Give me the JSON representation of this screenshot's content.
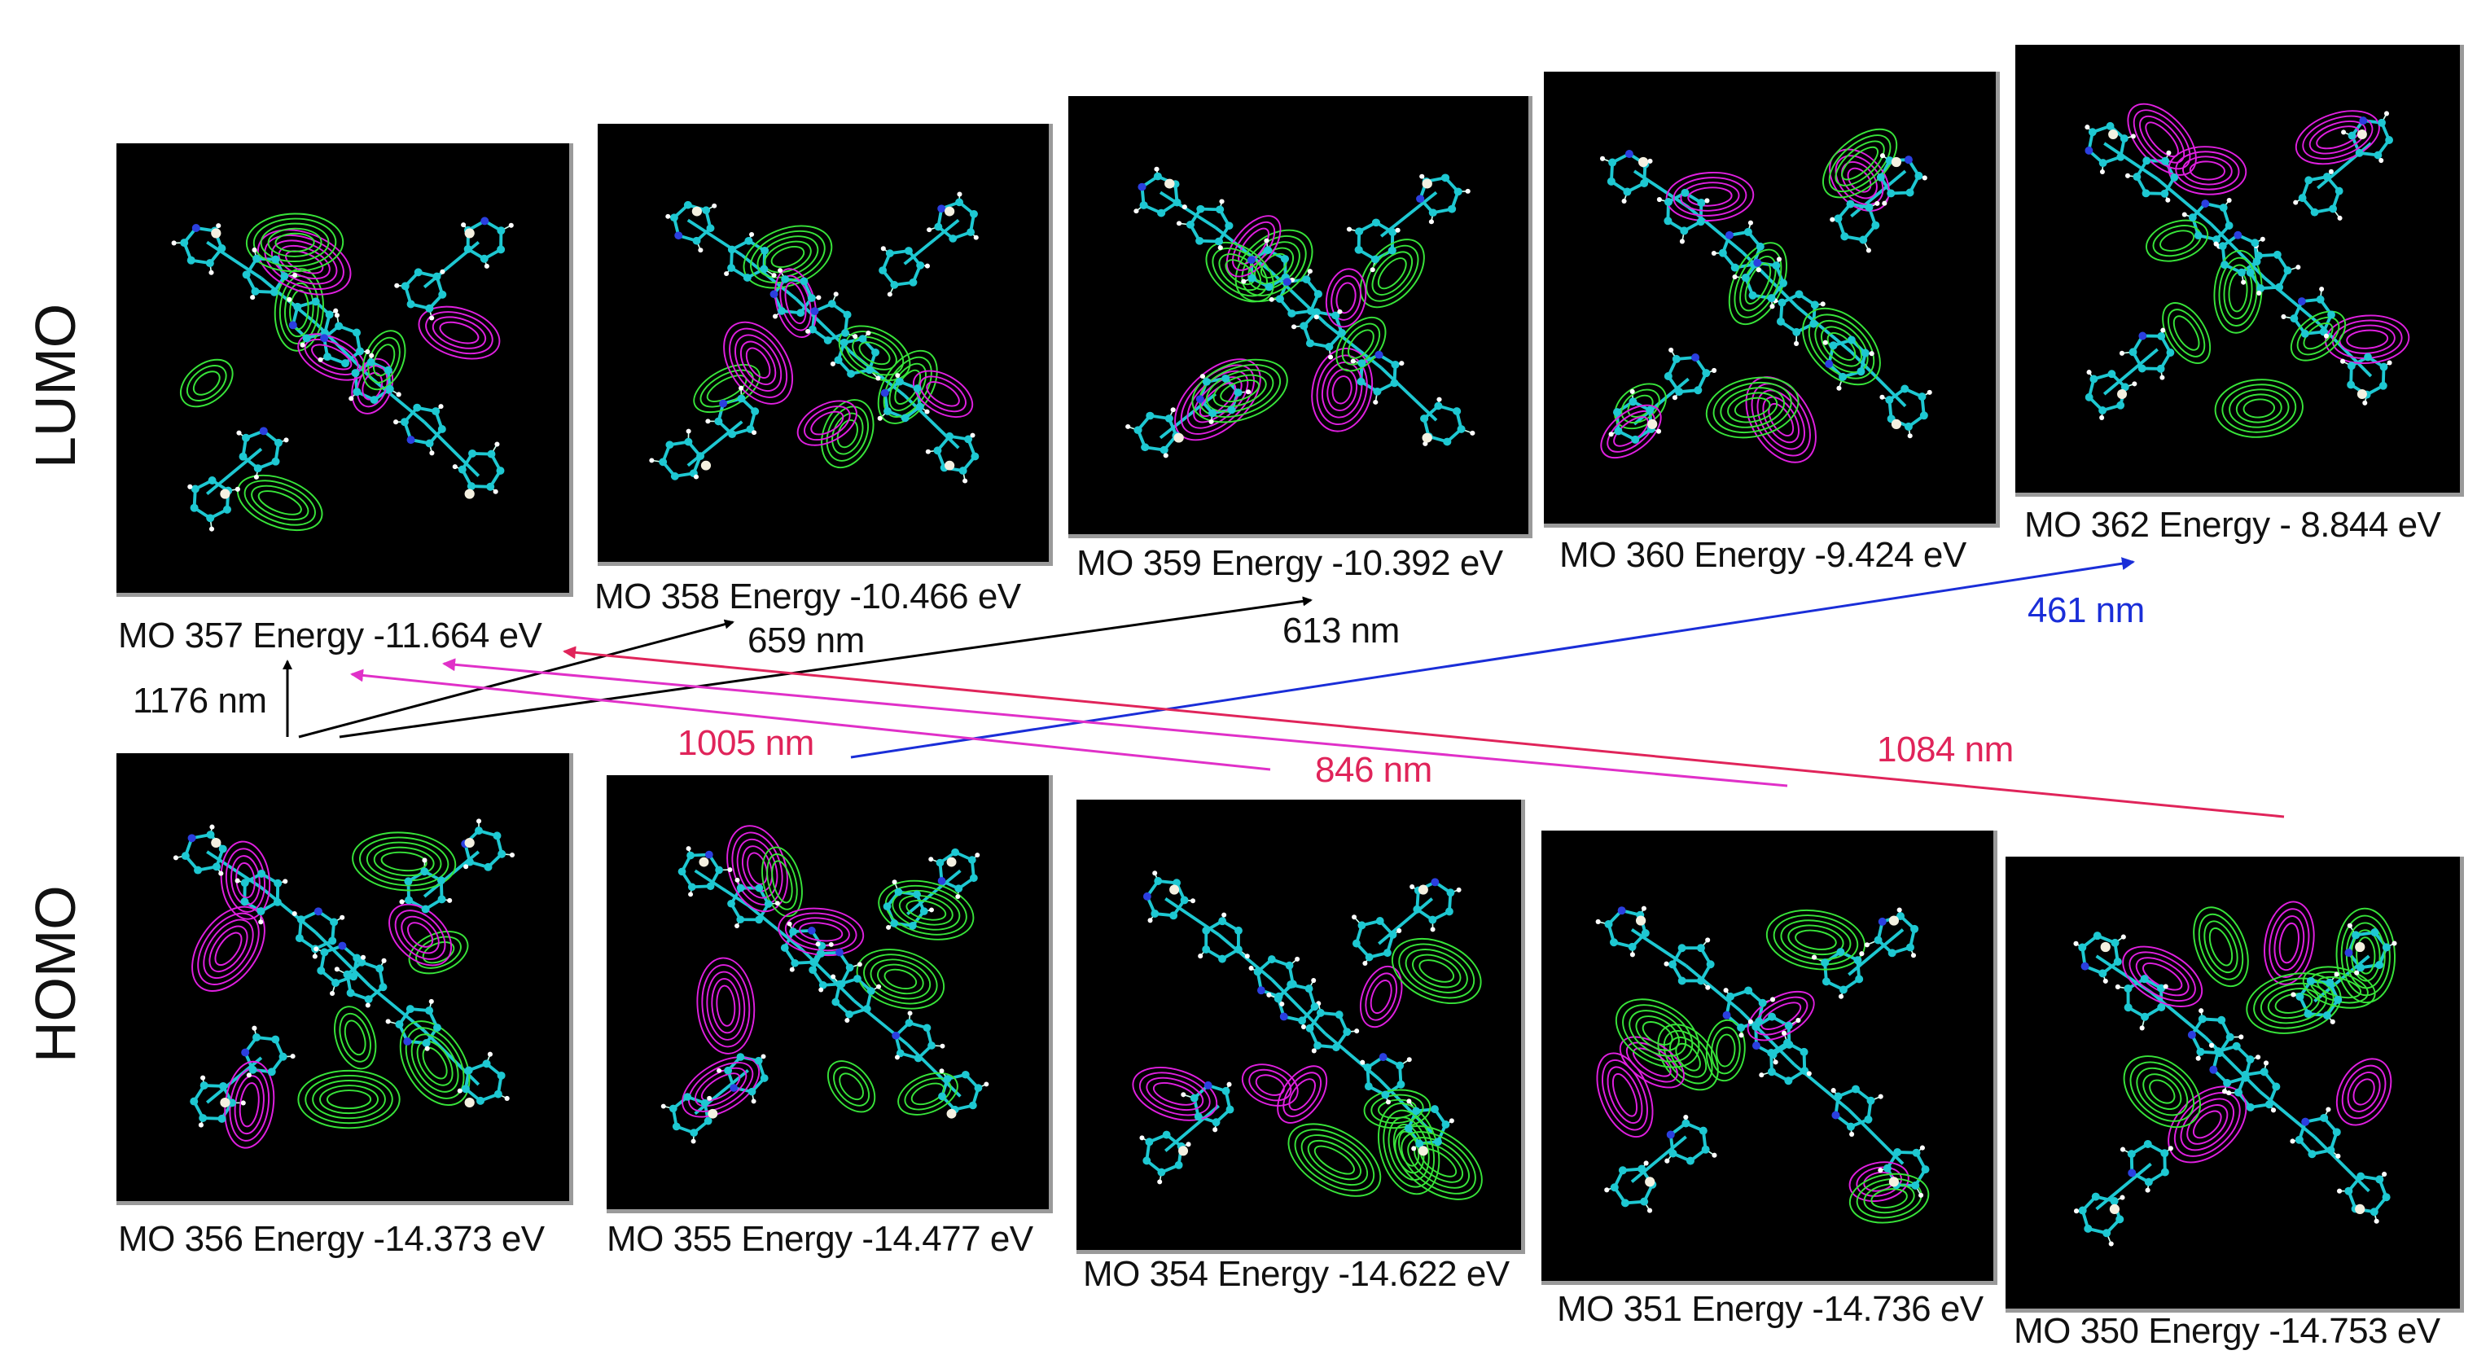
{
  "row_labels": {
    "lumo": "LUMO",
    "homo": "HOMO"
  },
  "lumo_orbitals": [
    {
      "caption": "MO 357 Energy -11.664 eV"
    },
    {
      "caption": "MO 358 Energy -10.466 eV"
    },
    {
      "caption": "MO 359 Energy -10.392 eV"
    },
    {
      "caption": "MO 360 Energy -9.424 eV"
    },
    {
      "caption": "MO 362 Energy - 8.844 eV"
    }
  ],
  "homo_orbitals": [
    {
      "caption": "MO 356 Energy -14.373 eV"
    },
    {
      "caption": "MO 355 Energy -14.477 eV"
    },
    {
      "caption": "MO 354 Energy -14.622 eV"
    },
    {
      "caption": "MO 351 Energy -14.736 eV"
    },
    {
      "caption": "MO 350 Energy -14.753 eV"
    }
  ],
  "transitions": [
    {
      "label": "1176 nm",
      "from": "MO 356",
      "to": "MO 357",
      "color": "#000000"
    },
    {
      "label": "659 nm",
      "from": "MO 356",
      "to": "MO 358",
      "color": "#000000"
    },
    {
      "label": "613 nm",
      "from": "MO 356",
      "to": "MO 359",
      "color": "#000000"
    },
    {
      "label": "461 nm",
      "from": "MO 355",
      "to": "MO 362",
      "color": "#1a2ed8"
    },
    {
      "label": "1005 nm",
      "from": "MO 351",
      "to": "MO 357",
      "color": "#e0245a"
    },
    {
      "label": "846 nm",
      "from": "MO 354",
      "to": "MO 357",
      "color": "#e0245a"
    },
    {
      "label": "1084 nm",
      "from": "MO 350",
      "to": "MO 357",
      "color": "#e0245a"
    }
  ],
  "colors": {
    "panel_background": "#000000",
    "carbon_atom": "#1ec8d2",
    "hydrogen_atom": "#ffffff",
    "nitrogen_atom": "#2b3fe0",
    "positive_lobe": "#38e43a",
    "negative_lobe": "#e020e0",
    "text": "#111111"
  },
  "panel_content": "molecule-with-orbital-contours"
}
